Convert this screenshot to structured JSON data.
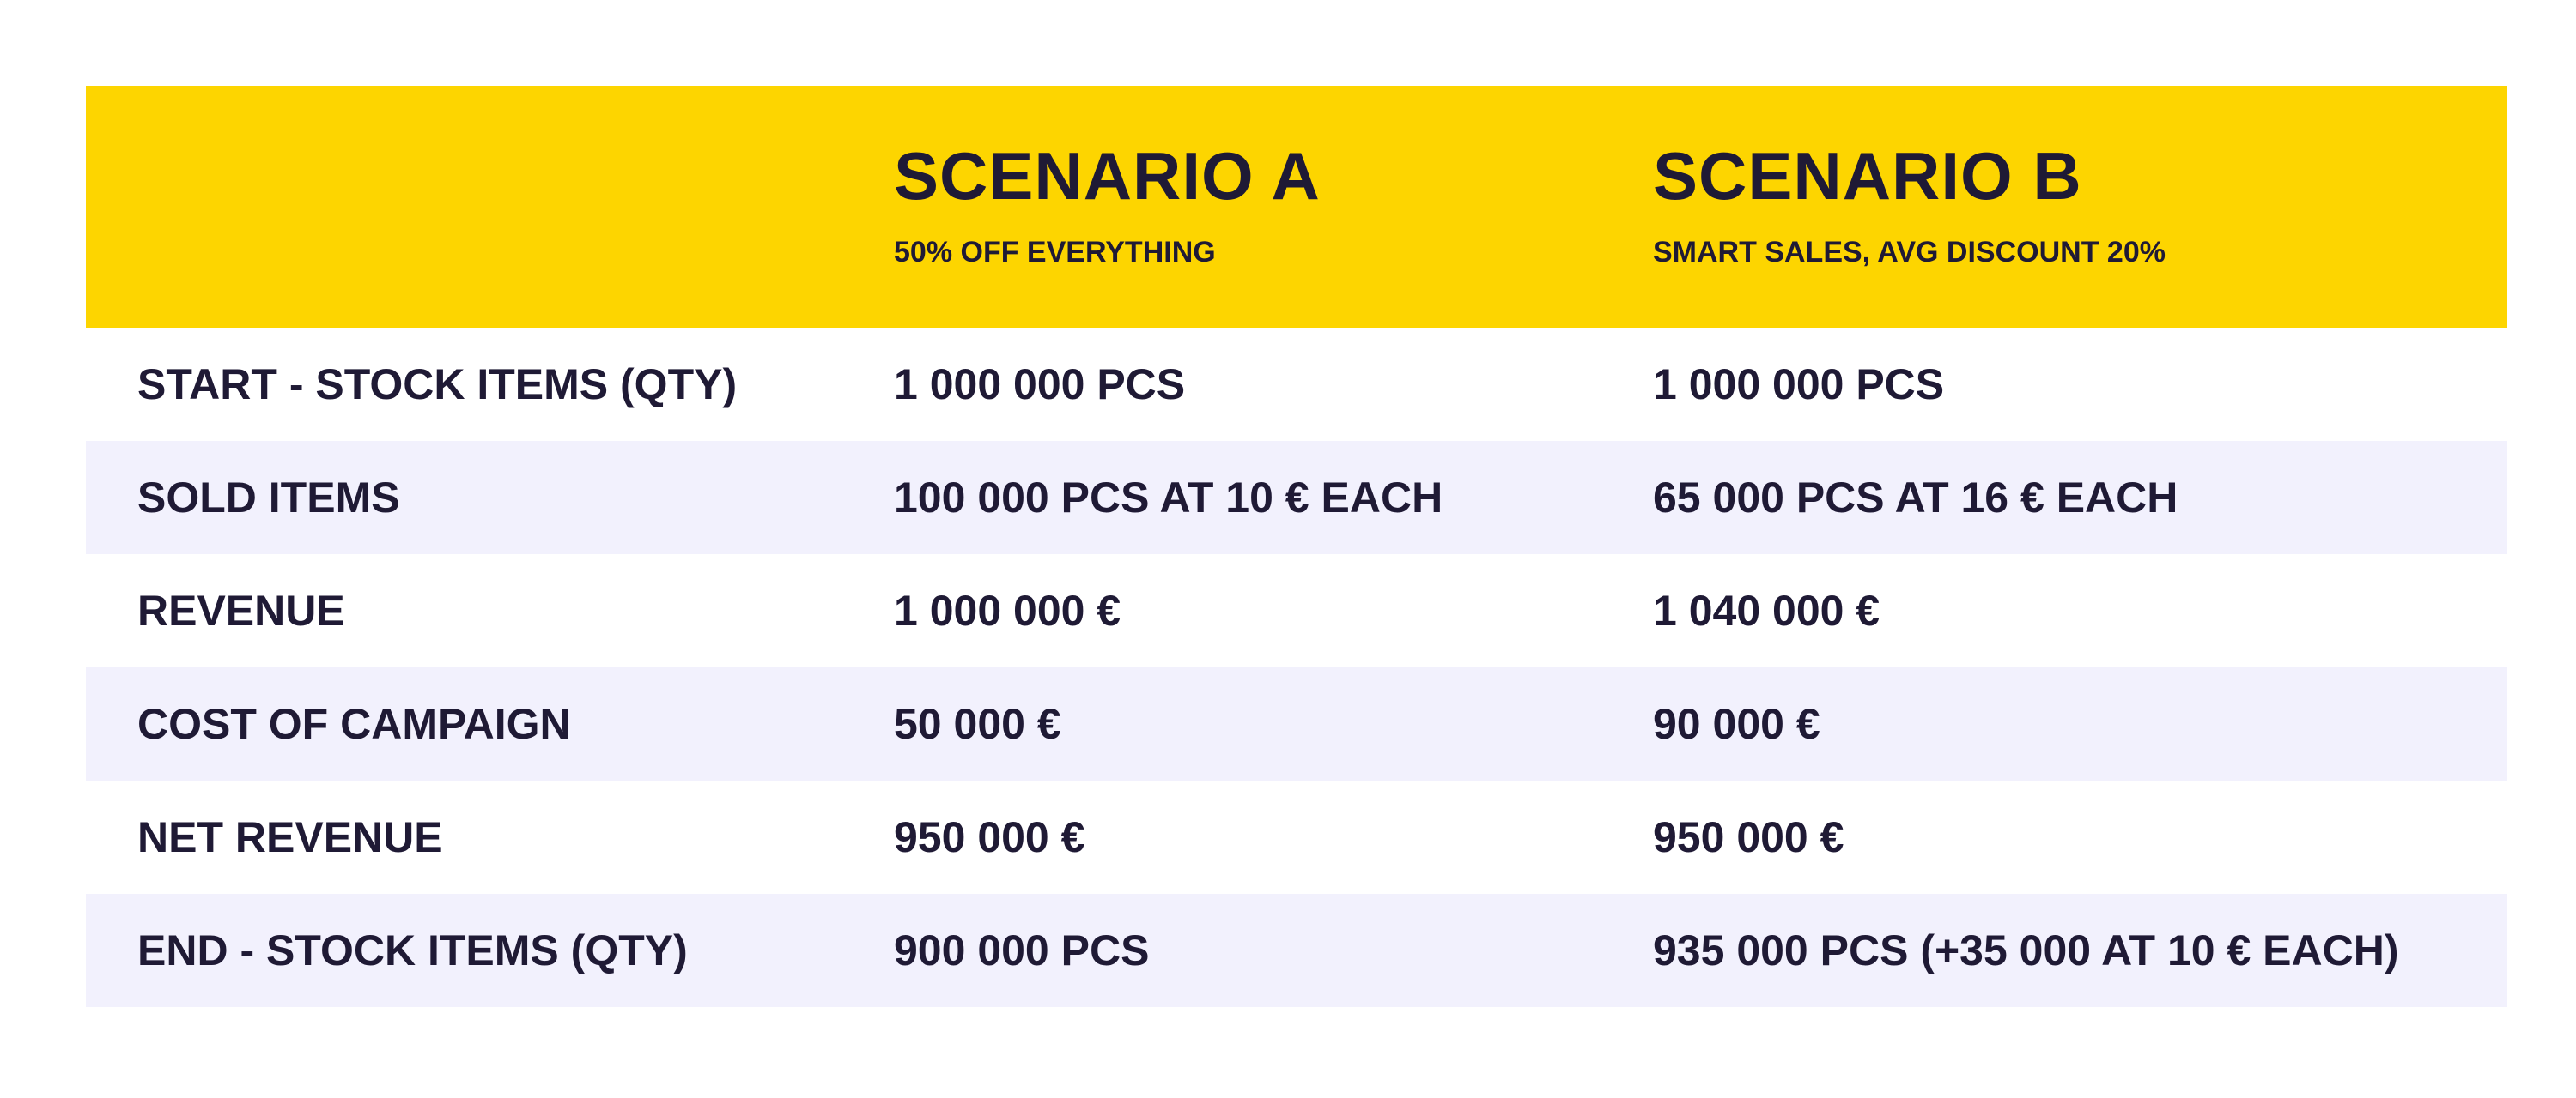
{
  "header": {
    "scenario_a": {
      "title": "SCENARIO A",
      "subtitle": "50% OFF EVERYTHING"
    },
    "scenario_b": {
      "title": "SCENARIO B",
      "subtitle": "SMART SALES, AVG DISCOUNT 20%"
    }
  },
  "rows": [
    {
      "label": "START - STOCK ITEMS  (QTY)",
      "a": "1 000 000 PCS",
      "b": "1 000 000 PCS"
    },
    {
      "label": "SOLD ITEMS",
      "a": "100 000 PCS AT 10 € EACH",
      "b": "65 000 PCS AT 16 € EACH"
    },
    {
      "label": "REVENUE",
      "a": "1 000 000 €",
      "b": "1 040 000 €"
    },
    {
      "label": "COST OF CAMPAIGN",
      "a": "50 000 €",
      "b": "90 000 €"
    },
    {
      "label": "NET REVENUE",
      "a": "950 000 €",
      "b": "950 000 €"
    },
    {
      "label": "END - STOCK ITEMS (QTY)",
      "a": "900 000 PCS",
      "b": "935 000 PCS (+35 000 AT 10 € EACH)"
    }
  ],
  "colors": {
    "header_bg": "#fdd500",
    "shaded_row_bg": "#f2f1fd",
    "text": "#1f1a35"
  }
}
